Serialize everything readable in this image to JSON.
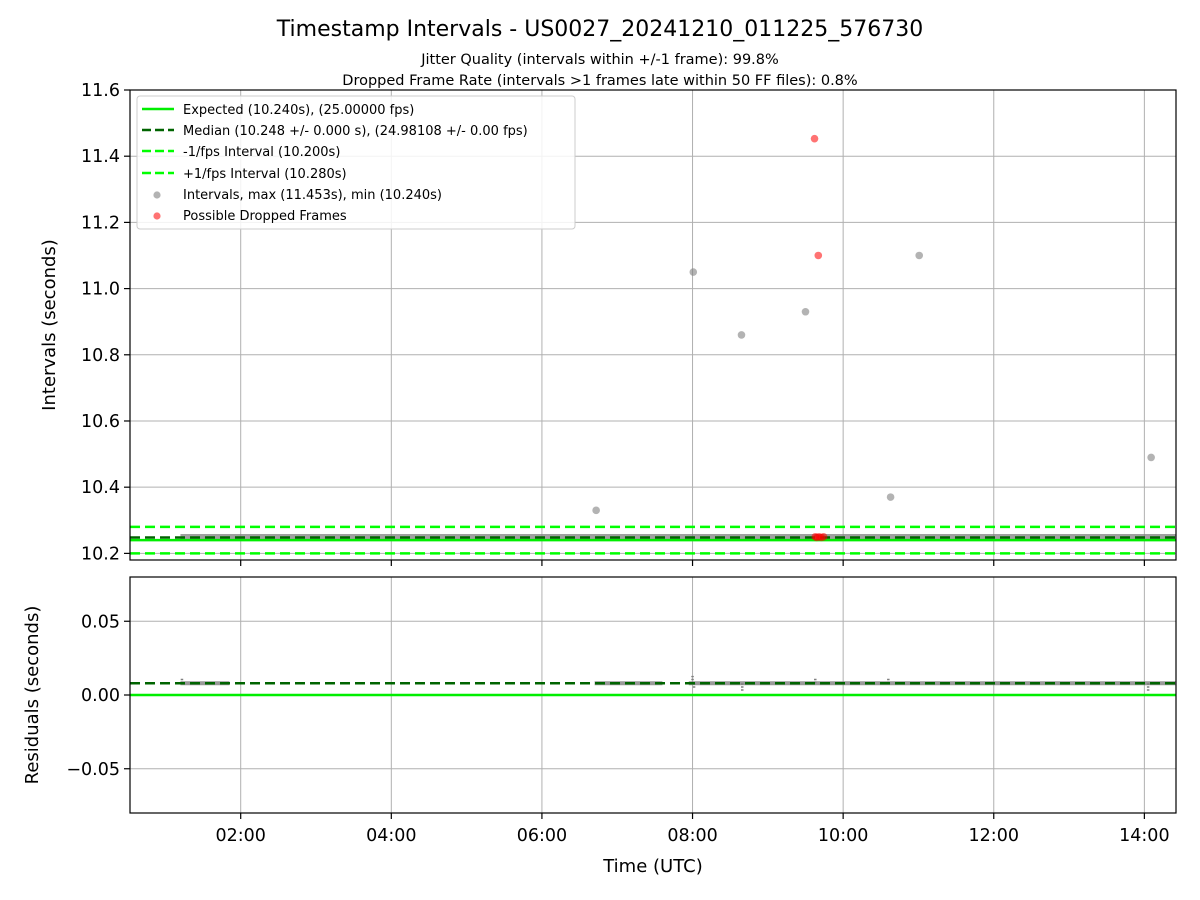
{
  "colors": {
    "expected": "#00ee00",
    "median": "#006400",
    "fps_band": "#00ff00",
    "interval_points": "#808080",
    "dropped_points": "#ff0000",
    "grid": "#b0b0b0"
  },
  "chart_data": [
    {
      "type": "scatter",
      "title": "Timestamp Intervals - US0027_20241210_011225_576730",
      "subtitle_1": "Jitter Quality (intervals within +/-1 frame): 99.8%",
      "subtitle_2": "Dropped Frame Rate (intervals >1 frames late within 50 FF files): 0.8%",
      "xlabel": "",
      "ylabel": "Intervals (seconds)",
      "xlim": [
        0.53,
        14.42
      ],
      "ylim": [
        10.18,
        11.6
      ],
      "yticks": [
        10.2,
        10.4,
        10.6,
        10.8,
        11.0,
        11.2,
        11.4,
        11.6
      ],
      "ytick_labels": [
        "10.2",
        "10.4",
        "10.6",
        "10.8",
        "11.0",
        "11.2",
        "11.4",
        "11.6"
      ],
      "grid": true,
      "legend_position": "top-left",
      "lines": [
        {
          "name": "Expected (10.240s), (25.00000 fps)",
          "y": 10.24,
          "style": "solid",
          "color": "#00ee00"
        },
        {
          "name": "Median (10.248 +/- 0.000 s), (24.98108 +/- 0.00 fps)",
          "y": 10.248,
          "style": "dashed",
          "color": "#006400"
        },
        {
          "name": "-1/fps Interval (10.200s)",
          "y": 10.2,
          "style": "dashed",
          "color": "#00ff00"
        },
        {
          "name": "+1/fps Interval (10.280s)",
          "y": 10.28,
          "style": "dashed",
          "color": "#00ff00"
        }
      ],
      "series": [
        {
          "name": "Intervals, max (11.453s), min (10.240s)",
          "color": "#808080",
          "points": [
            {
              "x": 6.72,
              "y": 10.33
            },
            {
              "x": 8.01,
              "y": 11.05
            },
            {
              "x": 8.65,
              "y": 10.86
            },
            {
              "x": 9.5,
              "y": 10.93
            },
            {
              "x": 10.63,
              "y": 10.37
            },
            {
              "x": 11.01,
              "y": 11.1
            },
            {
              "x": 14.09,
              "y": 10.49
            }
          ],
          "dense_band": {
            "x_start": 1.2,
            "x_end": 14.42,
            "y": 10.248
          }
        },
        {
          "name": "Possible Dropped Frames",
          "color": "#ff0000",
          "points": [
            {
              "x": 9.62,
              "y": 11.453
            },
            {
              "x": 9.67,
              "y": 11.1
            },
            {
              "x": 9.63,
              "y": 10.25
            },
            {
              "x": 9.65,
              "y": 10.248
            },
            {
              "x": 9.68,
              "y": 10.25
            },
            {
              "x": 9.71,
              "y": 10.248
            },
            {
              "x": 9.74,
              "y": 10.25
            }
          ]
        }
      ]
    },
    {
      "type": "scatter",
      "xlabel": "Time (UTC)",
      "ylabel": "Residuals (seconds)",
      "xlim": [
        0.53,
        14.42
      ],
      "ylim": [
        -0.08,
        0.08
      ],
      "yticks": [
        -0.05,
        0.0,
        0.05
      ],
      "ytick_labels": [
        "−0.05",
        "0.00",
        "0.05"
      ],
      "xticks": [
        2,
        4,
        6,
        8,
        10,
        12,
        14
      ],
      "xtick_labels": [
        "02:00",
        "04:00",
        "06:00",
        "08:00",
        "10:00",
        "12:00",
        "14:00"
      ],
      "grid": true,
      "lines": [
        {
          "y": 0.0,
          "style": "solid",
          "color": "#00ee00"
        },
        {
          "y": 0.008,
          "style": "dashed",
          "color": "#006400"
        }
      ],
      "series": [
        {
          "color": "#808080",
          "segments": [
            [
              1.2,
              1.85
            ],
            [
              6.7,
              7.6
            ],
            [
              7.95,
              14.42
            ]
          ],
          "y_center": 0.008,
          "spikes": [
            {
              "x": 1.22,
              "y": 0.012
            },
            {
              "x": 8.0,
              "y": 0.013
            },
            {
              "x": 8.02,
              "y": 0.004
            },
            {
              "x": 8.66,
              "y": 0.002
            },
            {
              "x": 9.63,
              "y": 0.012
            },
            {
              "x": 10.6,
              "y": 0.011
            },
            {
              "x": 14.05,
              "y": 0.002
            }
          ]
        }
      ]
    }
  ]
}
